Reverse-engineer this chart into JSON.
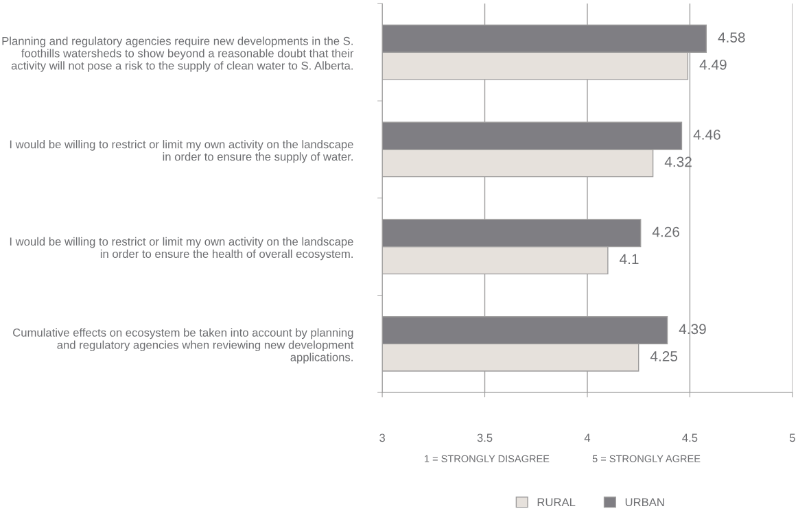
{
  "chart_data": {
    "type": "bar",
    "orientation": "horizontal",
    "categories": [
      "Planning and regulatory agencies require new developments in the S. foothills watersheds to show beyond a reasonable doubt that their activity will not pose a risk to the supply of clean water to S. Alberta.",
      "I would be willing to restrict or limit my own activity on the landscape in order to ensure the supply of water.",
      "I would be willing to restrict or limit my own activity on the landscape in order to ensure the health of overall ecosystem.",
      "Cumulative effects on ecosystem be taken into account by planning and regulatory agencies when reviewing new development applications."
    ],
    "series": [
      {
        "name": "RURAL",
        "color": "#e6e1dc",
        "values": [
          4.49,
          4.32,
          4.1,
          4.25
        ]
      },
      {
        "name": "URBAN",
        "color": "#7f7e83",
        "values": [
          4.58,
          4.46,
          4.26,
          4.39
        ]
      }
    ],
    "xlim": [
      3,
      5
    ],
    "xticks": [
      3,
      3.5,
      4,
      4.5,
      5
    ],
    "grid": "x",
    "legend": "bottom",
    "data_labels": true,
    "annotations": [
      "1 = STRONGLY DISAGREE",
      "5 = STRONGLY AGREE"
    ]
  }
}
